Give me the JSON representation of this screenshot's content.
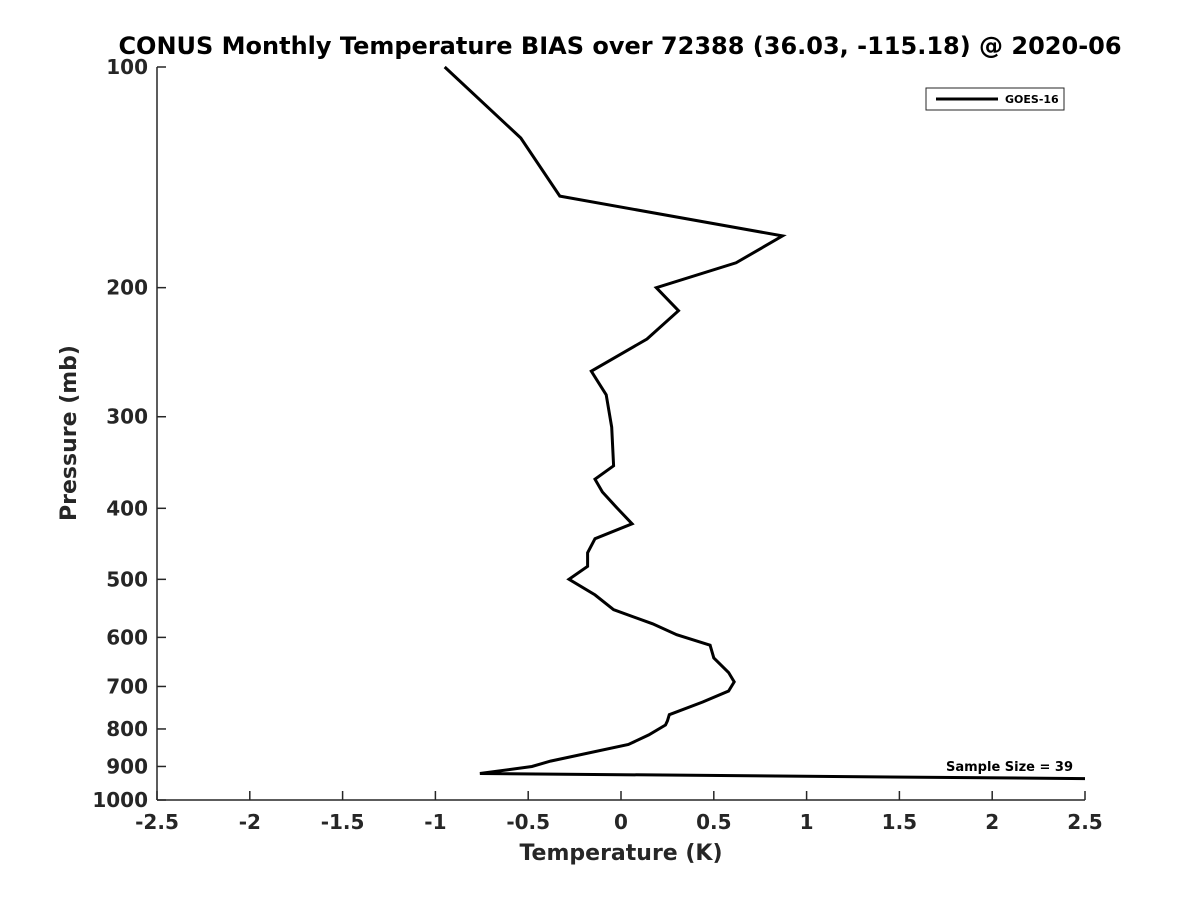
{
  "chart_data": {
    "type": "line",
    "title": "CONUS Monthly Temperature BIAS over 72388 (36.03, -115.18) @ 2020-06",
    "xlabel": "Temperature (K)",
    "ylabel": "Pressure (mb)",
    "xlim": [
      -2.5,
      2.5
    ],
    "ylim": [
      100,
      1000
    ],
    "yscale": "log",
    "y_reversed": true,
    "grid": false,
    "x_ticks": [
      -2.5,
      -2,
      -1.5,
      -1,
      -0.5,
      0,
      0.5,
      1,
      1.5,
      2,
      2.5
    ],
    "x_tick_labels": [
      "-2.5",
      "-2",
      "-1.5",
      "-1",
      "-0.5",
      "0",
      "0.5",
      "1",
      "1.5",
      "2",
      "2.5"
    ],
    "y_ticks": [
      100,
      200,
      300,
      400,
      500,
      600,
      700,
      800,
      900,
      1000
    ],
    "y_tick_labels": [
      "100",
      "200",
      "300",
      "400",
      "500",
      "600",
      "700",
      "800",
      "900",
      "1000"
    ],
    "legend": {
      "placement": "top-right",
      "entries": [
        "GOES-16"
      ]
    },
    "annotation": "Sample Size = 39",
    "line_color": "#000000",
    "series": [
      {
        "name": "GOES-16",
        "points": [
          {
            "x": -0.95,
            "y": 100
          },
          {
            "x": -0.54,
            "y": 125
          },
          {
            "x": -0.33,
            "y": 150
          },
          {
            "x": 0.87,
            "y": 170
          },
          {
            "x": 0.62,
            "y": 185
          },
          {
            "x": 0.19,
            "y": 200
          },
          {
            "x": 0.31,
            "y": 215
          },
          {
            "x": 0.14,
            "y": 235
          },
          {
            "x": -0.16,
            "y": 260
          },
          {
            "x": -0.08,
            "y": 280
          },
          {
            "x": -0.05,
            "y": 310
          },
          {
            "x": -0.04,
            "y": 350
          },
          {
            "x": -0.14,
            "y": 365
          },
          {
            "x": -0.1,
            "y": 380
          },
          {
            "x": -0.02,
            "y": 400
          },
          {
            "x": 0.06,
            "y": 420
          },
          {
            "x": -0.14,
            "y": 440
          },
          {
            "x": -0.18,
            "y": 460
          },
          {
            "x": -0.18,
            "y": 480
          },
          {
            "x": -0.28,
            "y": 500
          },
          {
            "x": -0.14,
            "y": 525
          },
          {
            "x": -0.04,
            "y": 550
          },
          {
            "x": 0.17,
            "y": 575
          },
          {
            "x": 0.3,
            "y": 595
          },
          {
            "x": 0.48,
            "y": 615
          },
          {
            "x": 0.5,
            "y": 640
          },
          {
            "x": 0.58,
            "y": 670
          },
          {
            "x": 0.61,
            "y": 690
          },
          {
            "x": 0.58,
            "y": 710
          },
          {
            "x": 0.44,
            "y": 735
          },
          {
            "x": 0.26,
            "y": 765
          },
          {
            "x": 0.25,
            "y": 780
          },
          {
            "x": 0.24,
            "y": 790
          },
          {
            "x": 0.15,
            "y": 815
          },
          {
            "x": 0.04,
            "y": 840
          },
          {
            "x": -0.38,
            "y": 885
          },
          {
            "x": -0.48,
            "y": 900
          },
          {
            "x": -0.76,
            "y": 920
          },
          {
            "x": 2.5,
            "y": 935
          }
        ]
      }
    ]
  }
}
